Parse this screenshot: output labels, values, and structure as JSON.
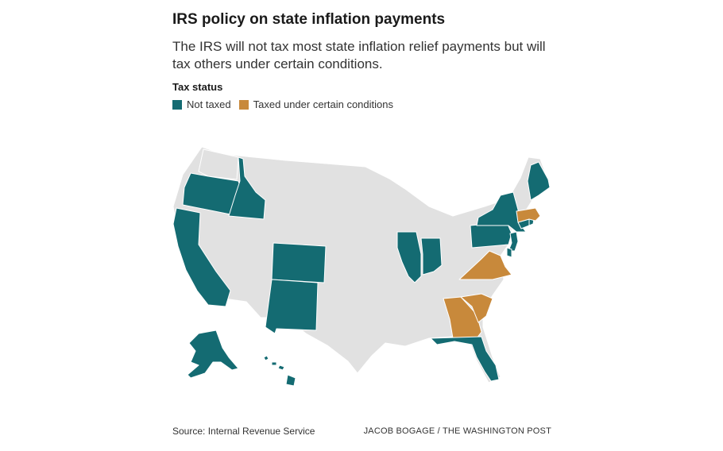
{
  "title": "IRS policy on state inflation payments",
  "subtitle": "The IRS will not tax most state inflation relief payments but will tax others under certain conditions.",
  "legend": {
    "title": "Tax status",
    "items": [
      {
        "label": "Not taxed",
        "color": "#146b72"
      },
      {
        "label": "Taxed under certain conditions",
        "color": "#c8893b"
      }
    ]
  },
  "colors": {
    "not_taxed": "#146b72",
    "taxed": "#c8893b",
    "other": "#e1e1e1",
    "border": "#ffffff"
  },
  "map_data": {
    "type": "choropleth",
    "region": "United States",
    "not_taxed": [
      "Alaska",
      "California",
      "Colorado",
      "Connecticut",
      "Delaware",
      "Florida",
      "Hawaii",
      "Idaho",
      "Illinois",
      "Indiana",
      "Maine",
      "New Jersey",
      "New Mexico",
      "New York",
      "Oregon",
      "Pennsylvania",
      "Rhode Island"
    ],
    "taxed_under_certain_conditions": [
      "Georgia",
      "Massachusetts",
      "South Carolina",
      "Virginia"
    ]
  },
  "source": "Source: Internal Revenue Service",
  "credit": "JACOB BOGAGE / THE WASHINGTON POST"
}
